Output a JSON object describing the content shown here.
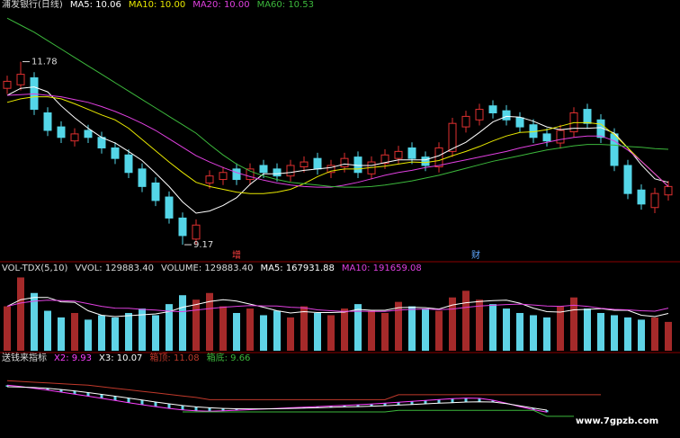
{
  "chart_data": [
    {
      "type": "candlestick",
      "title": "浦发银行(日线)",
      "up_color": "#e03030",
      "down_color": "#54d6e8",
      "ylim": [
        8.94,
        12.48
      ],
      "open": [
        11.4,
        11.45,
        11.55,
        11.05,
        10.85,
        10.65,
        10.8,
        10.7,
        10.55,
        10.45,
        10.25,
        10.05,
        9.85,
        9.55,
        9.25,
        10.05,
        10.1,
        10.25,
        10.1,
        10.3,
        10.25,
        10.15,
        10.28,
        10.4,
        10.2,
        10.28,
        10.42,
        10.18,
        10.33,
        10.4,
        10.55,
        10.42,
        10.28,
        10.5,
        10.85,
        10.95,
        11.15,
        11.08,
        10.98,
        10.88,
        10.75,
        10.62,
        10.78,
        11.1,
        10.95,
        10.75,
        10.3,
        9.95,
        9.7,
        9.88
      ],
      "high": [
        11.58,
        11.78,
        11.63,
        11.13,
        10.93,
        10.83,
        10.88,
        10.78,
        10.63,
        10.53,
        10.33,
        10.13,
        9.93,
        9.63,
        9.53,
        10.23,
        10.28,
        10.33,
        10.33,
        10.38,
        10.33,
        10.38,
        10.43,
        10.48,
        10.38,
        10.48,
        10.5,
        10.43,
        10.53,
        10.58,
        10.63,
        10.5,
        10.63,
        10.98,
        11.08,
        11.18,
        11.23,
        11.16,
        11.06,
        10.96,
        10.83,
        10.88,
        11.13,
        11.18,
        11.03,
        10.83,
        10.38,
        10.03,
        9.98,
        10.08
      ],
      "low": [
        11.32,
        11.37,
        11.02,
        10.72,
        10.62,
        10.57,
        10.62,
        10.47,
        10.32,
        10.12,
        9.92,
        9.72,
        9.47,
        9.17,
        9.17,
        9.97,
        10.02,
        10.02,
        10.02,
        10.12,
        10.07,
        10.07,
        10.2,
        10.17,
        10.12,
        10.2,
        10.12,
        10.1,
        10.25,
        10.32,
        10.32,
        10.22,
        10.2,
        10.42,
        10.77,
        10.87,
        10.97,
        10.87,
        10.77,
        10.62,
        10.57,
        10.54,
        10.7,
        10.82,
        10.62,
        10.22,
        9.82,
        9.67,
        9.62,
        9.8
      ],
      "close": [
        11.5,
        11.6,
        11.1,
        10.8,
        10.7,
        10.75,
        10.7,
        10.55,
        10.4,
        10.2,
        10.0,
        9.8,
        9.55,
        9.3,
        9.45,
        10.15,
        10.2,
        10.1,
        10.25,
        10.2,
        10.15,
        10.3,
        10.35,
        10.25,
        10.3,
        10.4,
        10.2,
        10.35,
        10.45,
        10.5,
        10.4,
        10.3,
        10.55,
        10.9,
        11.0,
        11.1,
        11.05,
        10.95,
        10.85,
        10.7,
        10.65,
        10.8,
        11.05,
        10.9,
        10.7,
        10.3,
        9.9,
        9.75,
        9.9,
        10.0
      ],
      "series": [
        {
          "name": "MA5",
          "label": "MA5: 10.06",
          "color": "#ffffff",
          "values": [
            11.3,
            11.4,
            11.42,
            11.35,
            11.15,
            10.98,
            10.83,
            10.7,
            10.62,
            10.5,
            10.37,
            10.19,
            10.0,
            9.78,
            9.62,
            9.65,
            9.73,
            9.84,
            10.03,
            10.18,
            10.18,
            10.2,
            10.23,
            10.25,
            10.27,
            10.32,
            10.3,
            10.3,
            10.34,
            10.38,
            10.38,
            10.38,
            10.44,
            10.54,
            10.63,
            10.77,
            10.92,
            11.0,
            10.99,
            10.93,
            10.85,
            10.81,
            10.83,
            10.83,
            10.84,
            10.76,
            10.55,
            10.31,
            10.11,
            10.06
          ]
        },
        {
          "name": "MA10",
          "label": "MA10: 10.00",
          "color": "#e8e800",
          "values": [
            11.2,
            11.25,
            11.28,
            11.28,
            11.25,
            11.18,
            11.1,
            11.02,
            10.95,
            10.83,
            10.67,
            10.51,
            10.35,
            10.2,
            10.06,
            10.0,
            9.96,
            9.92,
            9.9,
            9.9,
            9.92,
            9.96,
            10.04,
            10.14,
            10.22,
            10.25,
            10.25,
            10.27,
            10.29,
            10.32,
            10.35,
            10.34,
            10.37,
            10.44,
            10.5,
            10.57,
            10.65,
            10.72,
            10.77,
            10.78,
            10.81,
            10.86,
            10.91,
            10.91,
            10.89,
            10.74,
            10.55,
            10.36,
            10.18,
            10.0
          ]
        },
        {
          "name": "MA20",
          "label": "MA20: 10.00",
          "color": "#e040e0",
          "values": [
            11.3,
            11.31,
            11.32,
            11.3,
            11.28,
            11.24,
            11.2,
            11.14,
            11.07,
            10.99,
            10.9,
            10.8,
            10.68,
            10.56,
            10.44,
            10.35,
            10.27,
            10.2,
            10.14,
            10.09,
            10.05,
            10.02,
            10.0,
            9.99,
            9.99,
            10.02,
            10.06,
            10.11,
            10.16,
            10.2,
            10.23,
            10.27,
            10.3,
            10.34,
            10.38,
            10.42,
            10.46,
            10.5,
            10.55,
            10.59,
            10.63,
            10.67,
            10.7,
            10.72,
            10.72,
            10.65,
            10.52,
            10.36,
            10.18,
            10.0
          ]
        },
        {
          "name": "MA60",
          "label": "MA60: 10.53",
          "color": "#3cb83c",
          "values": [
            12.4,
            12.3,
            12.2,
            12.08,
            11.96,
            11.84,
            11.72,
            11.6,
            11.48,
            11.36,
            11.24,
            11.12,
            11.0,
            10.88,
            10.76,
            10.6,
            10.45,
            10.32,
            10.22,
            10.15,
            10.1,
            10.06,
            10.04,
            10.02,
            10.0,
            9.99,
            9.99,
            10.0,
            10.02,
            10.05,
            10.08,
            10.12,
            10.16,
            10.21,
            10.26,
            10.31,
            10.36,
            10.4,
            10.44,
            10.48,
            10.52,
            10.55,
            10.58,
            10.6,
            10.6,
            10.59,
            10.57,
            10.56,
            10.54,
            10.53
          ]
        }
      ],
      "annotations": [
        "11.78",
        "9.17"
      ],
      "events": [
        "增",
        "财"
      ]
    },
    {
      "type": "bar",
      "title": "VOL-TDX(5,10)",
      "texts": [
        "VVOL: 129883.40",
        "VOLUME: 129883.40"
      ],
      "up_color": "#a52a2a",
      "down_color": "#5fd3e6",
      "ylim": [
        0,
        340000
      ],
      "values": [
        200000,
        330000,
        260000,
        180000,
        150000,
        170000,
        140000,
        160000,
        150000,
        170000,
        190000,
        160000,
        210000,
        250000,
        230000,
        260000,
        200000,
        170000,
        190000,
        160000,
        180000,
        150000,
        200000,
        170000,
        160000,
        190000,
        210000,
        180000,
        170000,
        220000,
        200000,
        190000,
        180000,
        240000,
        270000,
        230000,
        210000,
        190000,
        170000,
        160000,
        150000,
        200000,
        240000,
        190000,
        170000,
        160000,
        150000,
        140000,
        150000,
        129883.4
      ],
      "series": [
        {
          "name": "MA5",
          "label": "MA5: 167931.88",
          "color": "#ffffff",
          "values": [
            200000,
            230000,
            240000,
            240000,
            220000,
            218000,
            180000,
            160000,
            154000,
            158000,
            162000,
            166000,
            176000,
            196000,
            208000,
            222000,
            230000,
            224000,
            210000,
            196000,
            180000,
            170000,
            176000,
            172000,
            172000,
            174000,
            186000,
            182000,
            182000,
            194000,
            196000,
            194000,
            188000,
            206000,
            216000,
            222000,
            226000,
            228000,
            214000,
            192000,
            176000,
            174000,
            184000,
            186000,
            190000,
            182000,
            182000,
            160000,
            154000,
            167931.88
          ]
        },
        {
          "name": "MA10",
          "label": "MA10: 191659.08",
          "color": "#e040e0",
          "values": [
            200000,
            215000,
            223000,
            228000,
            226000,
            224000,
            212000,
            200000,
            192000,
            191000,
            186000,
            183000,
            178000,
            176000,
            183000,
            190000,
            196000,
            200000,
            203000,
            202000,
            201000,
            196000,
            193000,
            184000,
            180000,
            177000,
            178000,
            177000,
            177000,
            183000,
            186000,
            188000,
            185000,
            188000,
            195000,
            201000,
            205000,
            208000,
            210000,
            206000,
            201000,
            200000,
            205000,
            200000,
            191000,
            186000,
            184000,
            180000,
            178000,
            191659.08
          ]
        }
      ]
    },
    {
      "type": "line",
      "title": "送钱来指标",
      "bar_color": "#5fd3e6",
      "ylim": [
        8.24,
        12.9
      ],
      "series": [
        {
          "name": "X2",
          "label": "X2: 9.93",
          "color": "#ff40ff",
          "values": [
            11.7,
            11.62,
            11.5,
            11.38,
            11.25,
            11.12,
            10.98,
            10.84,
            10.7,
            10.56,
            10.42,
            10.3,
            10.18,
            10.08,
            10.02,
            10.0,
            10.02,
            10.06,
            10.1,
            10.14,
            10.18,
            10.22,
            10.26,
            10.3,
            10.34,
            10.38,
            10.42,
            10.47,
            10.52,
            10.58,
            10.64,
            10.7,
            10.76,
            10.82,
            10.86,
            10.84,
            10.72,
            10.52,
            10.3,
            10.1,
            9.93,
            null,
            null,
            null,
            null,
            null,
            null,
            null,
            null,
            null
          ]
        },
        {
          "name": "X3",
          "label": "X3: 10.07",
          "color": "#ffffff",
          "values": [
            11.6,
            11.58,
            11.55,
            11.5,
            11.42,
            11.33,
            11.22,
            11.1,
            10.98,
            10.86,
            10.73,
            10.6,
            10.48,
            10.37,
            10.28,
            10.22,
            10.18,
            10.16,
            10.15,
            10.15,
            10.16,
            10.18,
            10.2,
            10.22,
            10.25,
            10.28,
            10.3,
            10.33,
            10.36,
            10.4,
            10.44,
            10.48,
            10.52,
            10.56,
            10.6,
            10.62,
            10.6,
            10.5,
            10.35,
            10.2,
            10.07,
            null,
            null,
            null,
            null,
            null,
            null,
            null,
            null,
            null
          ]
        },
        {
          "name": "箱顶",
          "label": "箱顶: 11.08",
          "color": "#c0392b",
          "values": [
            12.0,
            11.95,
            11.9,
            11.85,
            11.8,
            11.75,
            11.7,
            11.6,
            11.5,
            11.4,
            11.3,
            11.2,
            11.1,
            11.0,
            10.9,
            10.75,
            10.75,
            10.75,
            10.75,
            10.75,
            10.75,
            10.75,
            10.75,
            10.75,
            10.75,
            10.75,
            10.75,
            10.75,
            10.75,
            11.08,
            11.08,
            11.08,
            11.08,
            11.08,
            11.08,
            11.08,
            11.08,
            11.08,
            11.08,
            11.08,
            11.08,
            11.08,
            11.08,
            11.08,
            11.08,
            null,
            null,
            null,
            null,
            null
          ]
        },
        {
          "name": "箱底",
          "label": "箱底: 9.66",
          "color": "#3cb83c",
          "values": [
            null,
            null,
            null,
            null,
            null,
            null,
            null,
            null,
            null,
            null,
            null,
            null,
            null,
            9.95,
            9.95,
            9.95,
            9.95,
            9.95,
            9.95,
            9.95,
            9.95,
            9.95,
            9.95,
            9.95,
            9.95,
            9.95,
            9.95,
            9.95,
            9.95,
            10.05,
            10.05,
            10.05,
            10.05,
            10.05,
            10.05,
            10.05,
            10.05,
            10.05,
            10.05,
            10.05,
            9.66,
            9.66,
            9.66,
            null,
            null,
            null,
            null,
            null,
            null,
            null
          ]
        }
      ]
    }
  ],
  "watermark": "www.7gpzb.com"
}
